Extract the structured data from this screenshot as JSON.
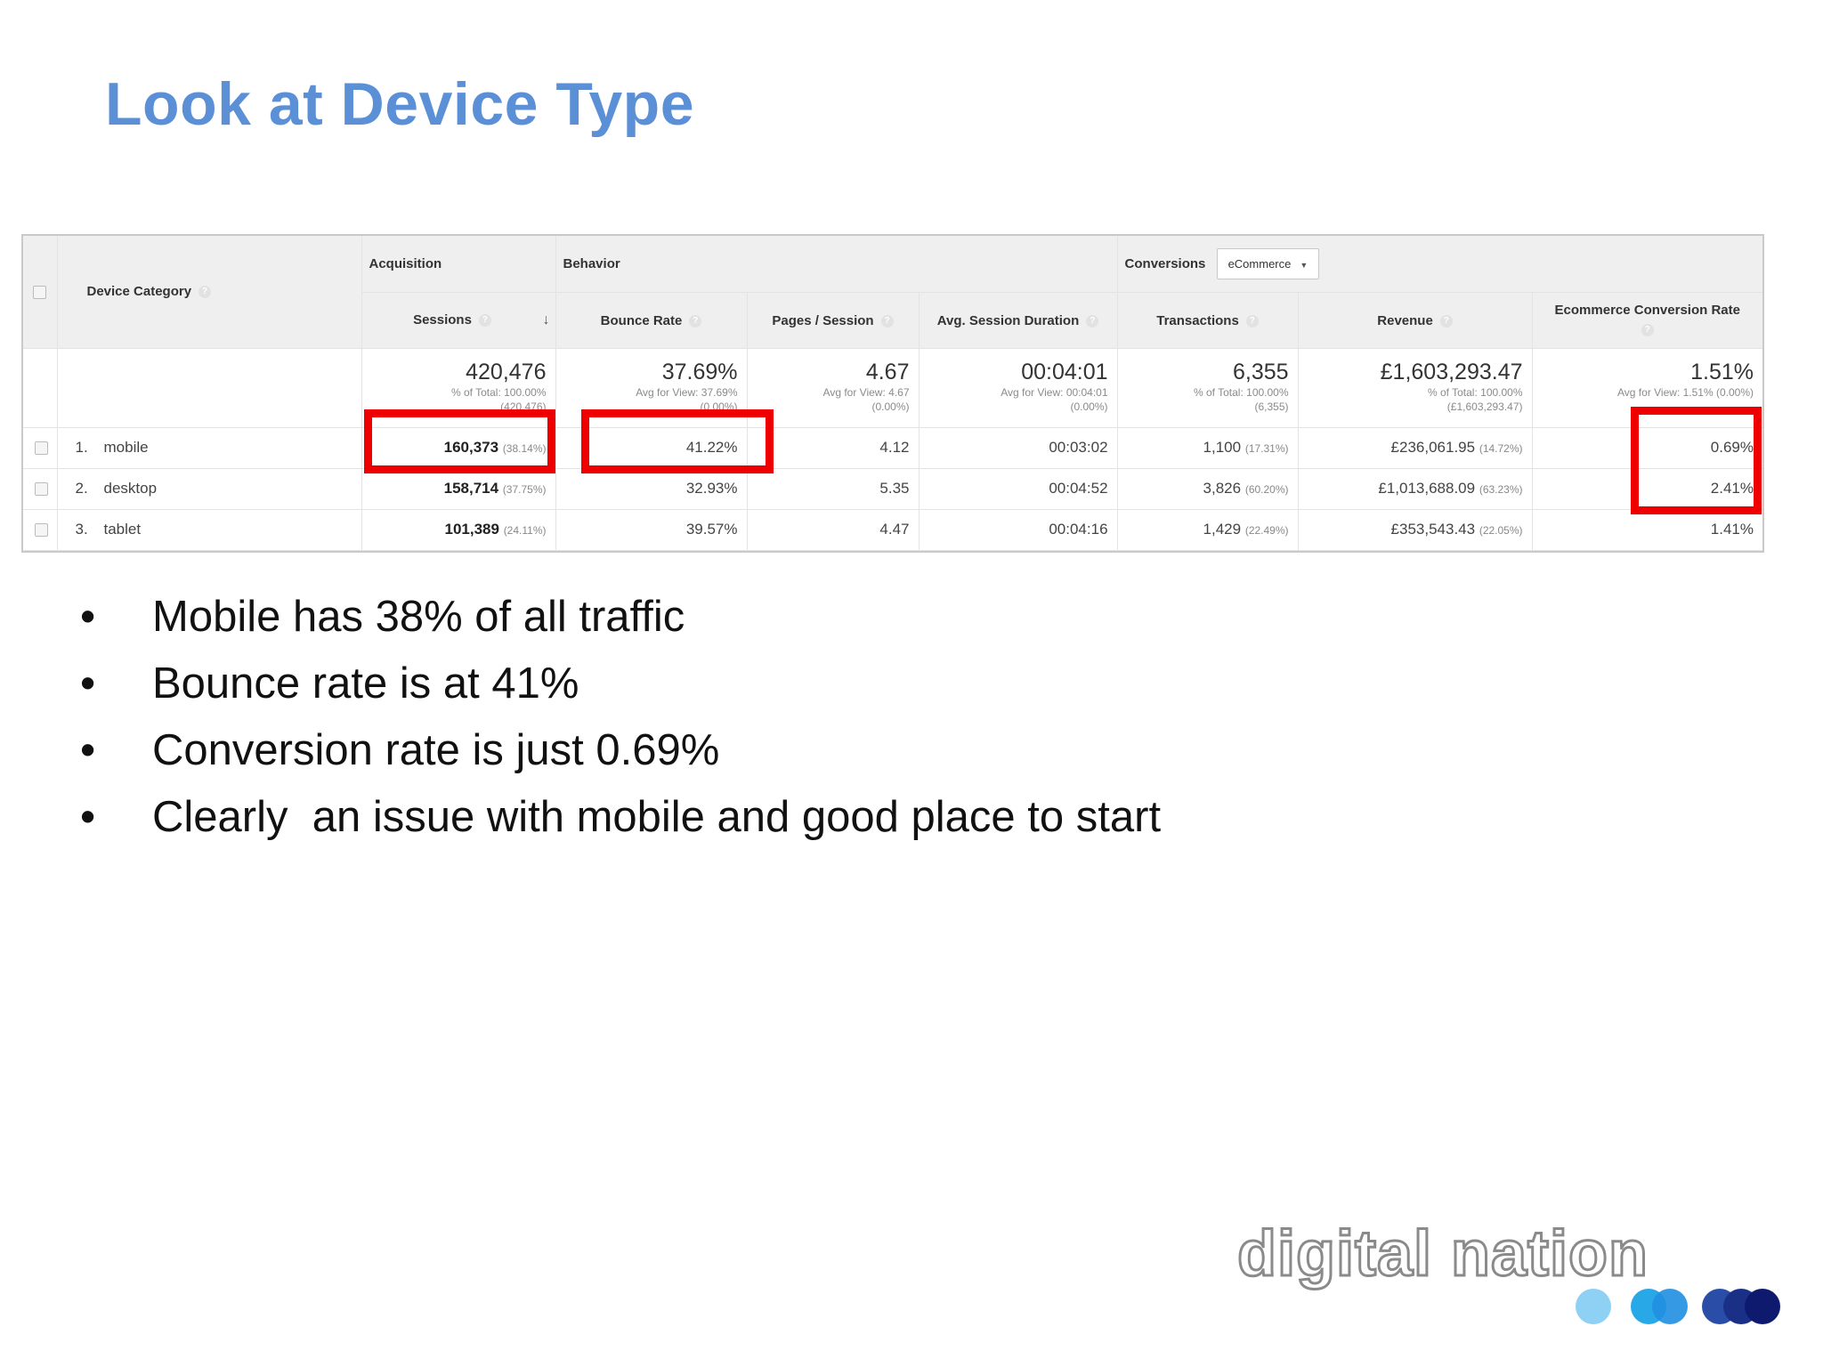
{
  "slide": {
    "title": "Look at Device Type",
    "bullets": [
      "Mobile has 38% of all traffic",
      "Bounce rate is at 41%",
      "Conversion rate is just 0.69%",
      "Clearly  an issue with mobile and good place to start"
    ],
    "bullet_glyph": "•"
  },
  "report": {
    "dimension_header": "Device Category",
    "groups": {
      "acquisition": "Acquisition",
      "behavior": "Behavior",
      "conversions": "Conversions",
      "conversion_select": "eCommerce"
    },
    "columns": {
      "sessions": "Sessions",
      "bounce_rate": "Bounce Rate",
      "pages_session": "Pages / Session",
      "avg_session_duration": "Avg. Session Duration",
      "transactions": "Transactions",
      "revenue": "Revenue",
      "ecom_conversion_rate": "Ecommerce Conversion Rate"
    },
    "totals": {
      "sessions": {
        "value": "420,476",
        "note1": "% of Total: 100.00%",
        "note2": "(420,476)"
      },
      "bounce_rate": {
        "value": "37.69%",
        "note1": "Avg for View: 37.69%",
        "note2": "(0.00%)"
      },
      "pages_session": {
        "value": "4.67",
        "note1": "Avg for View: 4.67",
        "note2": "(0.00%)"
      },
      "avg_session_duration": {
        "value": "00:04:01",
        "note1": "Avg for View: 00:04:01",
        "note2": "(0.00%)"
      },
      "transactions": {
        "value": "6,355",
        "note1": "% of Total: 100.00%",
        "note2": "(6,355)"
      },
      "revenue": {
        "value": "£1,603,293.47",
        "note1": "% of Total: 100.00%",
        "note2": "(£1,603,293.47)"
      },
      "ecom_conversion_rate": {
        "value": "1.51%",
        "note1": "Avg for View: 1.51% (0.00%)",
        "note2": ""
      }
    },
    "rows": [
      {
        "index": "1.",
        "device": "mobile",
        "sessions": "160,373",
        "sessions_pct": "(38.14%)",
        "bounce_rate": "41.22%",
        "pages_session": "4.12",
        "avg_session_duration": "00:03:02",
        "transactions": "1,100",
        "transactions_pct": "(17.31%)",
        "revenue": "£236,061.95",
        "revenue_pct": "(14.72%)",
        "ecom_conversion_rate": "0.69%"
      },
      {
        "index": "2.",
        "device": "desktop",
        "sessions": "158,714",
        "sessions_pct": "(37.75%)",
        "bounce_rate": "32.93%",
        "pages_session": "5.35",
        "avg_session_duration": "00:04:52",
        "transactions": "3,826",
        "transactions_pct": "(60.20%)",
        "revenue": "£1,013,688.09",
        "revenue_pct": "(63.23%)",
        "ecom_conversion_rate": "2.41%"
      },
      {
        "index": "3.",
        "device": "tablet",
        "sessions": "101,389",
        "sessions_pct": "(24.11%)",
        "bounce_rate": "39.57%",
        "pages_session": "4.47",
        "avg_session_duration": "00:04:16",
        "transactions": "1,429",
        "transactions_pct": "(22.49%)",
        "revenue": "£353,543.43",
        "revenue_pct": "(22.05%)",
        "ecom_conversion_rate": "1.41%"
      }
    ]
  },
  "logo": {
    "text": "digital nation",
    "colors": {
      "light_blue": "#8fd0f5",
      "mid_blue": "#29a8e8",
      "navy": "#2a4ea8",
      "dark_navy": "#0d1a6e"
    }
  },
  "colors": {
    "title": "#5b8fd6",
    "highlight": "#ee0000"
  }
}
